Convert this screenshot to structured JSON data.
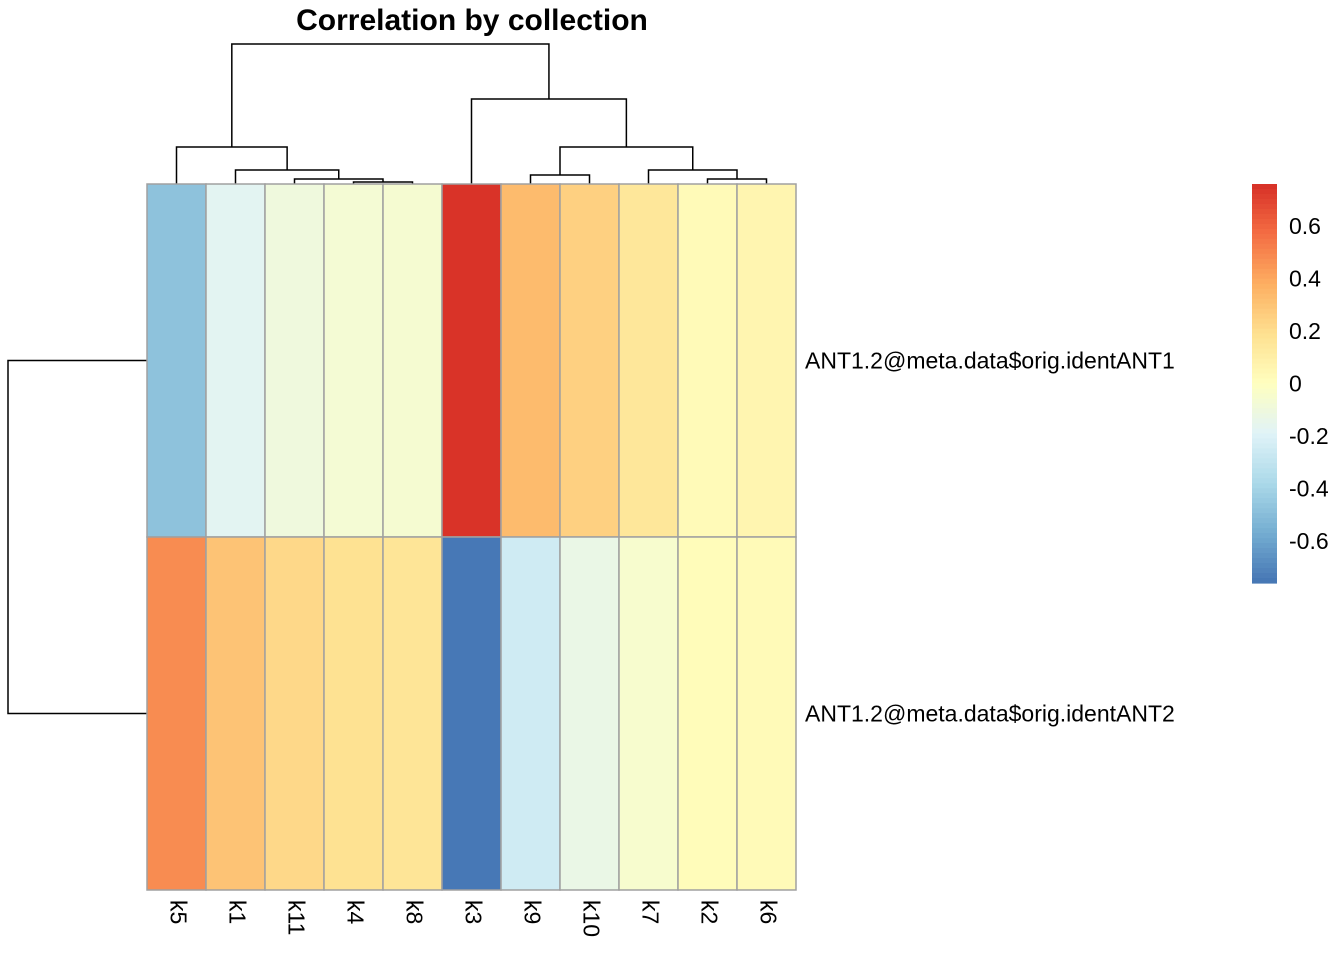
{
  "chart_data": {
    "type": "heatmap",
    "title": "Correlation by collection",
    "columns": [
      "k5",
      "k1",
      "k11",
      "k4",
      "k8",
      "k3",
      "k9",
      "k10",
      "k7",
      "k2",
      "k6"
    ],
    "rows": [
      "ANT1.2@meta.data$orig.identANT1",
      "ANT1.2@meta.data$orig.identANT2"
    ],
    "values": [
      [
        -0.48,
        -0.17,
        -0.1,
        -0.07,
        -0.06,
        0.75,
        0.33,
        0.25,
        0.15,
        0.03,
        0.06
      ],
      [
        0.48,
        0.3,
        0.22,
        0.18,
        0.16,
        -0.75,
        -0.25,
        -0.13,
        -0.05,
        0.02,
        0.03
      ]
    ],
    "color_scale": {
      "range": [
        -0.76,
        0.76
      ],
      "ticks": [
        "0.6",
        "0.4",
        "0.2",
        "0",
        "-0.2",
        "-0.4",
        "-0.6"
      ],
      "tick_values": [
        0.6,
        0.4,
        0.2,
        0,
        -0.2,
        -0.4,
        -0.6
      ],
      "low_color": "#4575b4",
      "mid_color": "#ffffbf",
      "high_color": "#d73027"
    },
    "legend_placement": "right",
    "column_dendrogram": true,
    "row_dendrogram": true
  }
}
